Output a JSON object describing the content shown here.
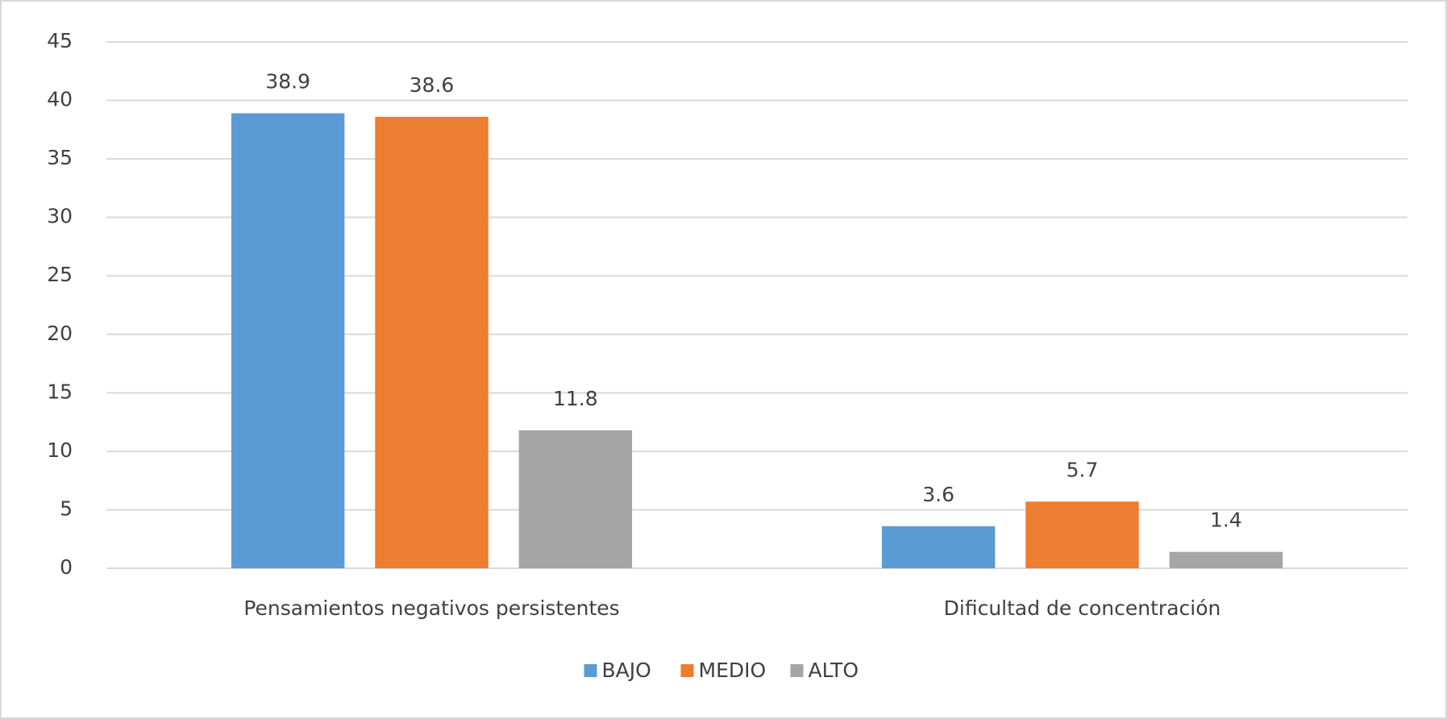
{
  "chart_data": {
    "type": "bar",
    "categories": [
      "Pensamientos negativos persistentes",
      "Dificultad de concentración"
    ],
    "series": [
      {
        "name": "BAJO",
        "color": "#5b9bd5",
        "values": [
          38.9,
          3.6
        ]
      },
      {
        "name": "MEDIO",
        "color": "#ed7d31",
        "values": [
          38.6,
          5.7
        ]
      },
      {
        "name": "ALTO",
        "color": "#a5a5a5",
        "values": [
          11.8,
          1.4
        ]
      }
    ],
    "ylim": [
      0,
      45
    ],
    "yticks": [
      0,
      5,
      10,
      15,
      20,
      25,
      30,
      35,
      40,
      45
    ],
    "grid": true,
    "legend": "bottom"
  }
}
